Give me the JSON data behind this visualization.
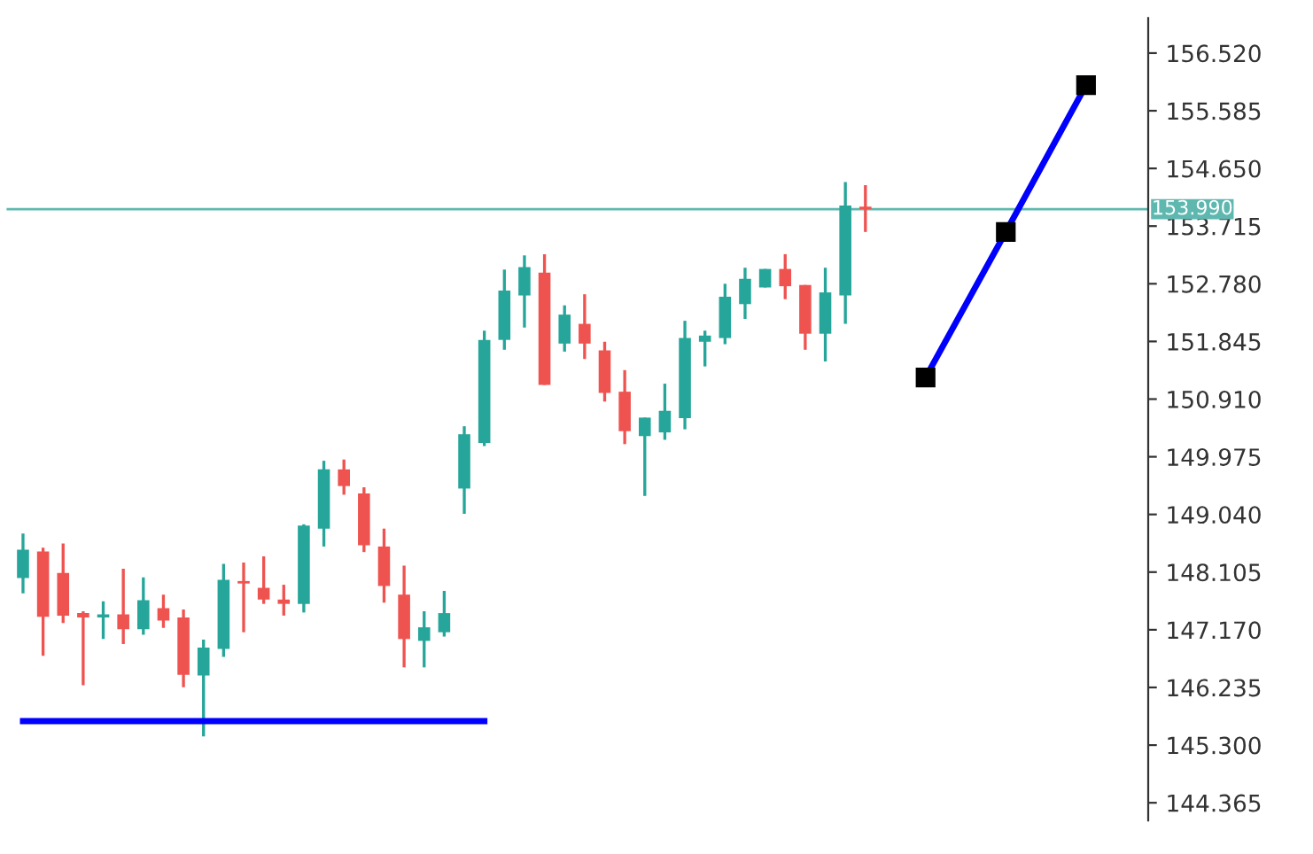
{
  "chart_data": {
    "type": "candlestick",
    "tick_labels": "y",
    "grid": false,
    "legend": false,
    "categories": [
      null,
      null,
      null,
      null,
      null,
      null,
      null,
      null,
      null,
      null,
      null,
      null,
      null,
      null,
      null,
      null,
      null,
      null,
      null,
      null,
      null,
      null,
      null,
      null,
      null,
      null,
      null,
      null,
      null,
      null,
      null,
      null,
      null,
      null,
      null,
      null,
      null,
      null,
      null,
      null,
      null,
      null,
      null,
      null,
      null,
      null,
      null,
      null,
      null,
      null,
      null,
      null,
      null,
      null
    ],
    "ohlc": [
      [
        148.01,
        148.73,
        147.76,
        148.47
      ],
      [
        148.44,
        148.5,
        146.75,
        147.38
      ],
      [
        148.09,
        148.57,
        147.28,
        147.4
      ],
      [
        147.44,
        147.47,
        146.27,
        147.37
      ],
      [
        147.37,
        147.63,
        147.02,
        147.42
      ],
      [
        147.42,
        148.16,
        146.94,
        147.18
      ],
      [
        147.18,
        148.02,
        147.09,
        147.65
      ],
      [
        147.52,
        147.74,
        147.2,
        147.32
      ],
      [
        147.37,
        147.5,
        146.24,
        146.44
      ],
      [
        146.43,
        147.01,
        145.44,
        146.88
      ],
      [
        146.86,
        148.24,
        146.73,
        147.98
      ],
      [
        147.96,
        148.26,
        147.13,
        147.92
      ],
      [
        147.85,
        148.36,
        147.59,
        147.66
      ],
      [
        147.66,
        147.9,
        147.4,
        147.59
      ],
      [
        147.59,
        148.88,
        147.45,
        148.86
      ],
      [
        148.81,
        149.91,
        148.52,
        149.77
      ],
      [
        149.77,
        149.93,
        149.36,
        149.5
      ],
      [
        149.38,
        149.48,
        148.43,
        148.54
      ],
      [
        148.52,
        148.81,
        147.61,
        147.88
      ],
      [
        147.74,
        148.21,
        146.56,
        147.02
      ],
      [
        146.99,
        147.47,
        146.56,
        147.21
      ],
      [
        147.13,
        147.8,
        147.06,
        147.44
      ],
      [
        149.46,
        150.47,
        149.05,
        150.34
      ],
      [
        150.2,
        152.02,
        150.15,
        151.87
      ],
      [
        151.87,
        153.01,
        151.71,
        152.67
      ],
      [
        152.59,
        153.24,
        152.07,
        153.05
      ],
      [
        152.96,
        153.26,
        151.14,
        151.14
      ],
      [
        151.81,
        152.43,
        151.68,
        152.28
      ],
      [
        152.13,
        152.61,
        151.56,
        151.81
      ],
      [
        151.7,
        151.84,
        150.87,
        151.01
      ],
      [
        151.03,
        151.38,
        150.18,
        150.39
      ],
      [
        150.31,
        150.61,
        149.34,
        150.61
      ],
      [
        150.37,
        151.16,
        150.25,
        150.72
      ],
      [
        150.6,
        152.18,
        150.42,
        151.9
      ],
      [
        151.84,
        152.02,
        151.44,
        151.94
      ],
      [
        151.9,
        152.78,
        151.8,
        152.57
      ],
      [
        152.45,
        153.04,
        152.21,
        152.86
      ],
      [
        152.72,
        153.02,
        152.72,
        153.02
      ],
      [
        153.02,
        153.26,
        152.53,
        152.74
      ],
      [
        152.76,
        152.76,
        151.71,
        151.97
      ],
      [
        151.97,
        153.04,
        151.52,
        152.64
      ],
      [
        152.59,
        154.43,
        152.13,
        154.05
      ],
      [
        154.03,
        154.38,
        153.62,
        153.99
      ],
      null,
      null,
      null,
      null,
      null,
      null,
      null,
      null,
      null,
      null,
      null
    ],
    "colors": [
      "#26a69a",
      "#ef5350",
      "#ef5350",
      "#ef5350",
      "#26a69a",
      "#ef5350",
      "#26a69a",
      "#ef5350",
      "#ef5350",
      "#26a69a",
      "#26a69a",
      "#ef5350",
      "#ef5350",
      "#ef5350",
      "#26a69a",
      "#26a69a",
      "#ef5350",
      "#ef5350",
      "#ef5350",
      "#ef5350",
      "#26a69a",
      "#26a69a",
      "#26a69a",
      "#26a69a",
      "#26a69a",
      "#26a69a",
      "#ef5350",
      "#26a69a",
      "#ef5350",
      "#ef5350",
      "#ef5350",
      "#26a69a",
      "#26a69a",
      "#26a69a",
      "#26a69a",
      "#26a69a",
      "#26a69a",
      "#26a69a",
      "#ef5350",
      "#ef5350",
      "#26a69a",
      "#26a69a",
      "#ef5350",
      null,
      null,
      null,
      null,
      null,
      null,
      null,
      null,
      null,
      null,
      null
    ],
    "series": [
      {
        "type": "line",
        "color": "#0000ff",
        "marker": "none",
        "values": [
          145.69,
          null,
          null,
          null,
          null,
          null,
          null,
          null,
          null,
          null,
          null,
          null,
          null,
          null,
          null,
          null,
          null,
          null,
          null,
          null,
          null,
          null,
          null,
          145.69,
          null,
          null,
          null,
          null,
          null,
          null,
          null,
          null,
          null,
          null,
          null,
          null,
          null,
          null,
          null,
          null,
          null,
          null,
          null,
          null,
          null,
          null,
          null,
          null,
          null,
          null,
          null,
          null,
          null,
          null
        ]
      },
      {
        "type": "line",
        "color": "#0000ff",
        "marker": "square",
        "values": [
          null,
          null,
          null,
          null,
          null,
          null,
          null,
          null,
          null,
          null,
          null,
          null,
          null,
          null,
          null,
          null,
          null,
          null,
          null,
          null,
          null,
          null,
          null,
          null,
          null,
          null,
          null,
          null,
          null,
          null,
          null,
          null,
          null,
          null,
          null,
          null,
          null,
          null,
          null,
          null,
          null,
          null,
          null,
          null,
          null,
          151.26,
          null,
          null,
          null,
          153.62,
          null,
          null,
          null,
          156.0
        ]
      }
    ],
    "ref_lines": [
      {
        "axis": "y",
        "value": 153.99,
        "label": "153.990",
        "color": "#5fb8b0"
      }
    ],
    "ylim": [
      144.08,
      157.09
    ],
    "yticks": [
      {
        "value": 156.52,
        "label": "156.520"
      },
      {
        "value": 155.585,
        "label": "155.585"
      },
      {
        "value": 154.65,
        "label": "154.650"
      },
      {
        "value": 153.715,
        "label": "153.715"
      },
      {
        "value": 152.78,
        "label": "152.780"
      },
      {
        "value": 151.845,
        "label": "151.845"
      },
      {
        "value": 150.91,
        "label": "150.910"
      },
      {
        "value": 149.975,
        "label": "149.975"
      },
      {
        "value": 149.04,
        "label": "149.040"
      },
      {
        "value": 148.105,
        "label": "148.105"
      },
      {
        "value": 147.17,
        "label": "147.170"
      },
      {
        "value": 146.235,
        "label": "146.235"
      },
      {
        "value": 145.3,
        "label": "145.300"
      },
      {
        "value": 144.365,
        "label": "144.365"
      }
    ]
  }
}
